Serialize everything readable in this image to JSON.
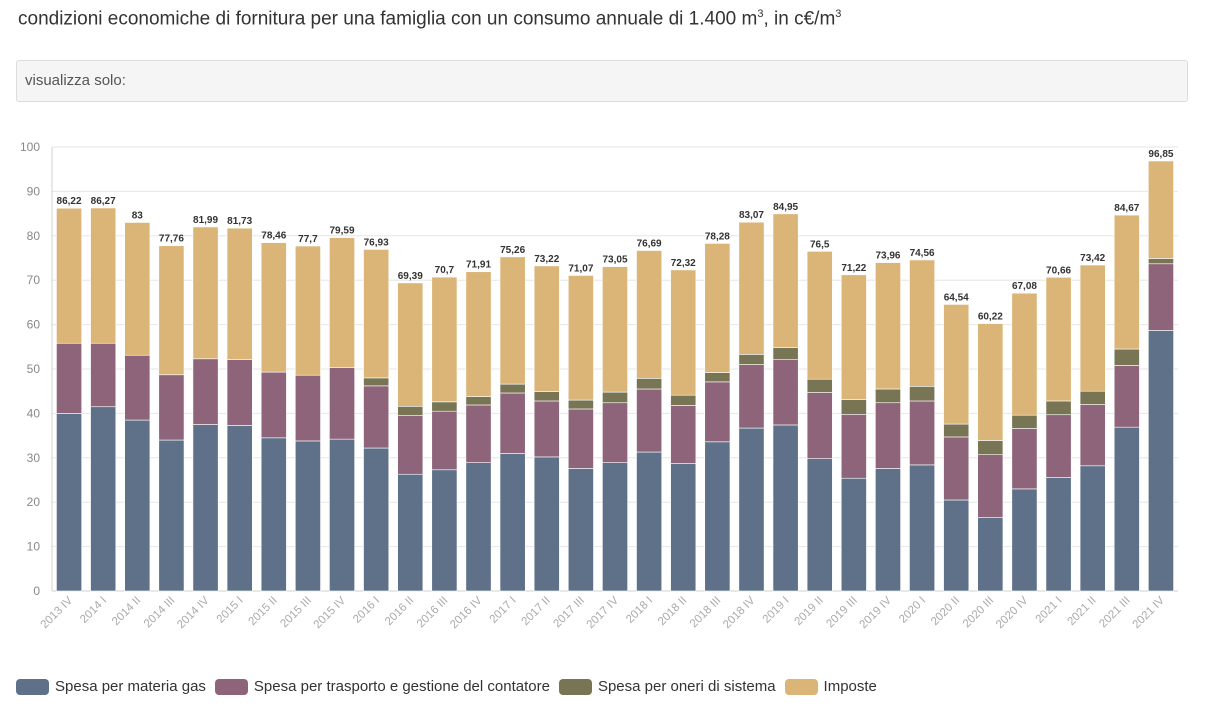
{
  "title": {
    "text": "condizioni economiche di fornitura per una famiglia con un consumo annuale di 1.400 m",
    "unit_mid": ", in c€/m",
    "sup1": "3",
    "sup2": "3"
  },
  "filter": {
    "label": "visualizza solo:"
  },
  "colors": {
    "materia": "#5e7189",
    "trasporto": "#8d6479",
    "oneri": "#777553",
    "imposte": "#dbb577"
  },
  "chart_data": {
    "type": "bar",
    "stacked": true,
    "ylim": [
      0,
      100
    ],
    "yticks": [
      0,
      10,
      20,
      30,
      40,
      50,
      60,
      70,
      80,
      90,
      100
    ],
    "grid": true,
    "legend_position": "bottom",
    "categories": [
      "2013 IV",
      "2014 I",
      "2014 II",
      "2014 III",
      "2014 IV",
      "2015 I",
      "2015 II",
      "2015 III",
      "2015 IV",
      "2016 I",
      "2016 II",
      "2016 III",
      "2016 IV",
      "2017 I",
      "2017 II",
      "2017 III",
      "2017 IV",
      "2018 I",
      "2018 II",
      "2018 III",
      "2018 IV",
      "2019 I",
      "2019 II",
      "2019 III",
      "2019 IV",
      "2020 I",
      "2020 II",
      "2020 III",
      "2020 IV",
      "2021 I",
      "2021 II",
      "2021 III",
      "2021 IV"
    ],
    "totals": [
      "86,22",
      "86,27",
      "83",
      "77,76",
      "81,99",
      "81,73",
      "78,46",
      "77,7",
      "79,59",
      "76,93",
      "69,39",
      "70,7",
      "71,91",
      "75,26",
      "73,22",
      "71,07",
      "73,05",
      "76,69",
      "72,32",
      "78,28",
      "83,07",
      "84,95",
      "76,5",
      "71,22",
      "73,96",
      "74,56",
      "64,54",
      "60,22",
      "67,08",
      "70,66",
      "73,42",
      "84,67",
      "96,85"
    ],
    "series": [
      {
        "name": "Spesa per materia gas",
        "color_key": "materia",
        "values": [
          40.0,
          41.5,
          38.5,
          34.0,
          37.5,
          37.3,
          34.5,
          33.8,
          34.2,
          32.2,
          26.3,
          27.3,
          28.9,
          31.0,
          30.2,
          27.6,
          28.9,
          31.3,
          28.7,
          33.6,
          36.7,
          37.4,
          29.8,
          25.4,
          27.6,
          28.4,
          20.5,
          16.6,
          23.0,
          25.6,
          28.2,
          36.9,
          58.7
        ]
      },
      {
        "name": "Spesa per trasporto e gestione del contatore",
        "color_key": "trasporto",
        "values": [
          15.8,
          14.3,
          14.6,
          14.7,
          14.8,
          14.8,
          14.8,
          14.8,
          16.1,
          14.0,
          13.2,
          13.2,
          13.0,
          13.6,
          12.6,
          13.4,
          13.5,
          14.2,
          13.1,
          13.5,
          14.3,
          14.7,
          14.9,
          14.4,
          14.8,
          14.4,
          14.2,
          14.1,
          13.6,
          14.1,
          13.8,
          13.9,
          15.0
        ]
      },
      {
        "name": "Spesa per oneri di sistema",
        "color_key": "oneri",
        "values": [
          0,
          0,
          0,
          0,
          0,
          0,
          0,
          0,
          0,
          1.8,
          2.1,
          2.1,
          1.9,
          2.0,
          2.1,
          2.0,
          2.4,
          2.4,
          2.3,
          2.1,
          2.3,
          2.7,
          3.0,
          3.3,
          3.1,
          3.3,
          2.9,
          3.2,
          3.0,
          3.1,
          3.0,
          3.7,
          1.2
        ]
      },
      {
        "name": "Imposte",
        "color_key": "imposte",
        "values": [
          30.42,
          30.47,
          29.9,
          29.06,
          29.69,
          29.63,
          29.16,
          29.1,
          29.29,
          28.93,
          27.79,
          28.1,
          28.11,
          28.66,
          28.32,
          28.07,
          28.25,
          28.79,
          28.22,
          29.08,
          29.77,
          30.15,
          28.8,
          28.12,
          28.46,
          28.46,
          26.94,
          26.32,
          27.48,
          27.86,
          28.42,
          30.17,
          21.95
        ]
      }
    ]
  }
}
